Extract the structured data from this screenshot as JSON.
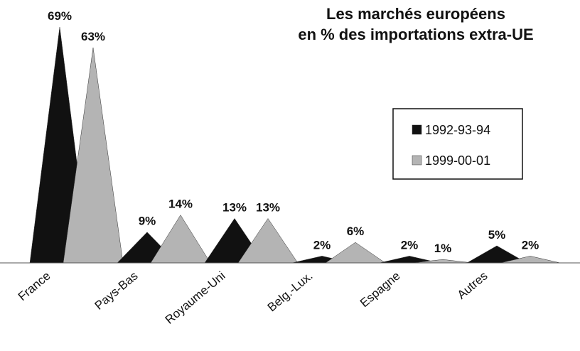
{
  "chart_data": {
    "type": "pyramid",
    "title": [
      "Les marchés européens",
      "en % des importations extra-UE"
    ],
    "categories": [
      "France",
      "Pays-Bas",
      "Royaume-Uni",
      "Belg.-Lux.",
      "Espagne",
      "Autres"
    ],
    "series": [
      {
        "name": "1992-93-94",
        "color": "#111111",
        "values": [
          69,
          9,
          13,
          2,
          2,
          5
        ],
        "value_labels": [
          "69%",
          "9%",
          "13%",
          "2%",
          "2%",
          "5%"
        ]
      },
      {
        "name": "1999-00-01",
        "color": "#b4b4b4",
        "values": [
          63,
          14,
          13,
          6,
          1,
          2
        ],
        "value_labels": [
          "63%",
          "14%",
          "13%",
          "6%",
          "1%",
          "2%"
        ]
      }
    ]
  }
}
